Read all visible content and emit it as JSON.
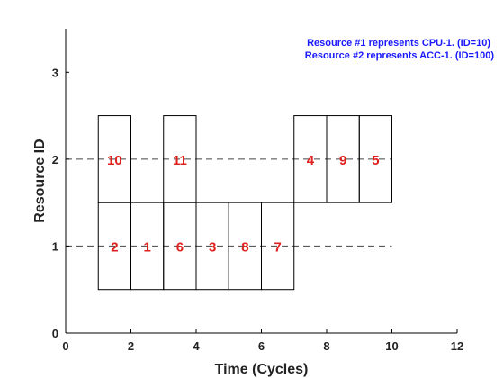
{
  "chart_data": {
    "type": "gantt",
    "xlabel": "Time (Cycles)",
    "ylabel": "Resource ID",
    "xlim": [
      0,
      12
    ],
    "ylim": [
      0,
      3.5
    ],
    "xticks": [
      0,
      2,
      4,
      6,
      8,
      10,
      12
    ],
    "yticks": [
      0,
      1,
      2,
      3
    ],
    "grid": false,
    "annotations": [
      "Resource #1 represents CPU-1. (ID=10)",
      "Resource #2 represents ACC-1. (ID=100)"
    ],
    "reference_lines": [
      {
        "resource": 1,
        "from": 0,
        "to": 10
      },
      {
        "resource": 2,
        "from": 0,
        "to": 10
      }
    ],
    "tasks": [
      {
        "label": "10",
        "resource": 2,
        "start": 1,
        "end": 2
      },
      {
        "label": "11",
        "resource": 2,
        "start": 3,
        "end": 4
      },
      {
        "label": "4",
        "resource": 2,
        "start": 7,
        "end": 8
      },
      {
        "label": "9",
        "resource": 2,
        "start": 8,
        "end": 9
      },
      {
        "label": "5",
        "resource": 2,
        "start": 9,
        "end": 10
      },
      {
        "label": "2",
        "resource": 1,
        "start": 1,
        "end": 2
      },
      {
        "label": "1",
        "resource": 1,
        "start": 2,
        "end": 3
      },
      {
        "label": "6",
        "resource": 1,
        "start": 3,
        "end": 4
      },
      {
        "label": "3",
        "resource": 1,
        "start": 4,
        "end": 5
      },
      {
        "label": "8",
        "resource": 1,
        "start": 5,
        "end": 6
      },
      {
        "label": "7",
        "resource": 1,
        "start": 6,
        "end": 7
      }
    ]
  }
}
